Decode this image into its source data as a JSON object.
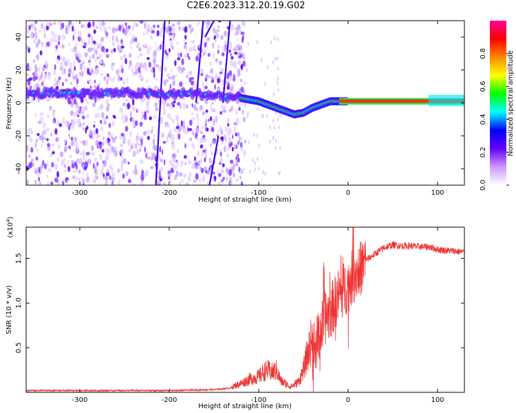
{
  "title": "C2E6.2023.312.20.19.G02",
  "chart_data": [
    {
      "type": "heatmap",
      "xlabel": "Height of straight line (km)",
      "ylabel": "Frequency (Hz)",
      "xlim": [
        -360,
        130
      ],
      "ylim": [
        -50,
        50
      ],
      "xticks": [
        -300,
        -200,
        -100,
        0,
        100
      ],
      "yticks": [
        -40,
        -20,
        0,
        20,
        40
      ],
      "colorbar": {
        "label": "Normalized spectral amplitude",
        "range": [
          0,
          1
        ],
        "ticks": [
          "0.0",
          "0.2",
          "0.4",
          "0.6",
          "0.8"
        ],
        "tick_values": [
          0.0,
          0.2,
          0.4,
          0.6,
          0.8
        ],
        "colors": [
          "#ffffff",
          "#cc99ff",
          "#6600ff",
          "#0000ff",
          "#00ffff",
          "#00ff00",
          "#ffff00",
          "#ff8800",
          "#ff0000",
          "#ff0099"
        ]
      },
      "signal_track": {
        "x": [
          -360,
          -300,
          -250,
          -200,
          -180,
          -140,
          -120,
          -100,
          -80,
          -60,
          -50,
          -40,
          -30,
          -20,
          -10,
          0,
          50,
          100,
          130
        ],
        "frequency_hz": [
          6,
          6,
          6,
          5,
          6,
          4,
          3,
          1,
          -3,
          -7,
          -6,
          -3,
          -1,
          1,
          1,
          1,
          1,
          1,
          1
        ]
      }
    },
    {
      "type": "line",
      "xlabel": "Height of straight line (km)",
      "ylabel": "SNR (10 * v/v)",
      "y_multiplier": "(x10",
      "y_multiplier_exp": "4",
      "xlim": [
        -360,
        130
      ],
      "ylim": [
        0,
        1.85
      ],
      "xticks": [
        -300,
        -200,
        -100,
        0,
        100
      ],
      "yticks": [
        0.5,
        1.0,
        1.5
      ],
      "ytick_labels": [
        "0.5",
        "1.0",
        "1.5"
      ],
      "color": "#ee3333",
      "series": [
        {
          "x": [
            -360,
            -300,
            -200,
            -150,
            -130,
            -120,
            -110,
            -100,
            -95,
            -90,
            -85,
            -80,
            -75,
            -70,
            -65,
            -60,
            -55,
            -50,
            -45,
            -40,
            -35,
            -30,
            -25,
            -20,
            -15,
            -10,
            -5,
            0,
            5,
            10,
            15,
            20,
            30,
            40,
            50,
            60,
            70,
            80,
            90,
            100,
            110,
            120,
            130
          ],
          "values": [
            0.02,
            0.02,
            0.02,
            0.03,
            0.05,
            0.08,
            0.12,
            0.14,
            0.18,
            0.2,
            0.18,
            0.2,
            0.1,
            0.08,
            0.05,
            0.07,
            0.1,
            0.2,
            0.35,
            0.5,
            0.55,
            0.7,
            0.85,
            0.9,
            1.0,
            1.1,
            1.15,
            1.2,
            1.3,
            1.35,
            1.4,
            1.48,
            1.55,
            1.62,
            1.65,
            1.64,
            1.64,
            1.63,
            1.63,
            1.6,
            1.59,
            1.58,
            1.57
          ]
        }
      ]
    }
  ]
}
